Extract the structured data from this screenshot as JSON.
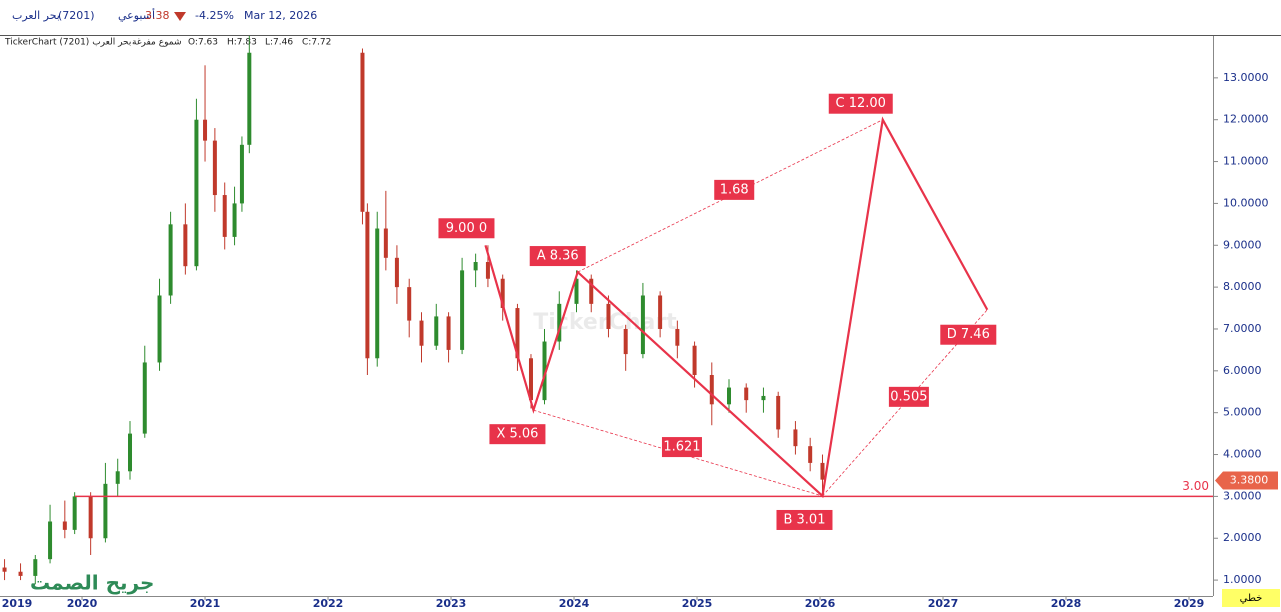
{
  "header": {
    "name": "بحر العرب",
    "code": "(7201)",
    "period": "أسبوعي",
    "price": "3.38",
    "change": "-4.25%",
    "date": "Mar 12, 2026",
    "chart_name": "TickerChart (7201) بحر العرب",
    "style": "شموع مفرغة",
    "ohlc": [
      "O:7.63",
      "H:7.83",
      "L:7.46",
      "C:7.72"
    ],
    "watermark": "TickerChart",
    "signature": "جريح الصمت",
    "scale_mode": "خطي"
  },
  "chart_data": {
    "type": "candlestick",
    "x": [
      2019.37,
      2019.5,
      2019.62,
      2019.74,
      2019.86,
      2019.94,
      2020.07,
      2020.19,
      2020.29,
      2020.39,
      2020.51,
      2020.63,
      2020.72,
      2020.84,
      2020.93,
      2021.0,
      2021.08,
      2021.16,
      2021.24,
      2021.3,
      2021.36,
      2022.28,
      2022.32,
      2022.4,
      2022.47,
      2022.56,
      2022.66,
      2022.76,
      2022.88,
      2022.98,
      2023.09,
      2023.2,
      2023.3,
      2023.42,
      2023.54,
      2023.65,
      2023.76,
      2023.88,
      2024.02,
      2024.14,
      2024.28,
      2024.42,
      2024.56,
      2024.7,
      2024.84,
      2024.98,
      2025.12,
      2025.26,
      2025.4,
      2025.54,
      2025.66,
      2025.8,
      2025.92,
      2026.02
    ],
    "open": [
      1.3,
      1.2,
      1.1,
      1.5,
      2.4,
      2.2,
      3.0,
      2.0,
      3.3,
      3.6,
      4.5,
      6.2,
      7.8,
      9.5,
      8.5,
      12.0,
      11.5,
      10.2,
      9.2,
      10.0,
      11.4,
      13.6,
      9.8,
      6.3,
      9.4,
      8.7,
      8.0,
      7.2,
      6.6,
      7.3,
      6.5,
      8.4,
      8.6,
      8.2,
      7.5,
      6.3,
      5.3,
      6.7,
      7.6,
      8.2,
      7.6,
      7.0,
      6.4,
      7.8,
      7.0,
      6.6,
      5.9,
      5.2,
      5.6,
      5.3,
      5.4,
      4.6,
      4.2,
      3.8
    ],
    "high": [
      1.5,
      1.4,
      1.6,
      2.8,
      2.9,
      3.1,
      3.1,
      3.8,
      3.9,
      4.8,
      6.6,
      8.2,
      9.8,
      10.0,
      12.5,
      13.3,
      11.8,
      10.5,
      10.4,
      11.6,
      14.0,
      13.7,
      10.0,
      9.8,
      10.3,
      9.0,
      8.2,
      7.4,
      7.6,
      7.4,
      8.7,
      8.8,
      9.0,
      8.3,
      7.6,
      6.4,
      7.0,
      7.9,
      8.4,
      8.3,
      7.8,
      7.1,
      8.1,
      7.9,
      7.2,
      6.7,
      6.2,
      5.8,
      5.7,
      5.6,
      5.5,
      4.8,
      4.4,
      4.0
    ],
    "low": [
      1.0,
      1.0,
      0.9,
      1.4,
      2.0,
      2.1,
      1.6,
      1.9,
      3.0,
      3.4,
      4.4,
      6.0,
      7.6,
      8.3,
      8.4,
      11.0,
      9.8,
      8.9,
      9.0,
      9.8,
      11.2,
      9.5,
      5.9,
      6.1,
      8.4,
      7.6,
      6.8,
      6.2,
      6.5,
      6.2,
      6.4,
      8.0,
      8.0,
      7.2,
      6.0,
      5.1,
      5.2,
      6.5,
      7.4,
      7.4,
      6.8,
      6.0,
      6.3,
      6.8,
      6.3,
      5.6,
      4.7,
      5.0,
      5.0,
      5.0,
      4.4,
      4.0,
      3.6,
      3.0
    ],
    "close": [
      1.2,
      1.1,
      1.5,
      2.4,
      2.2,
      3.0,
      2.0,
      3.3,
      3.6,
      4.5,
      6.2,
      7.8,
      9.5,
      8.5,
      12.0,
      11.5,
      10.2,
      9.2,
      10.0,
      11.4,
      13.6,
      9.8,
      6.3,
      9.4,
      8.7,
      8.0,
      7.2,
      6.6,
      7.3,
      6.5,
      8.4,
      8.6,
      8.2,
      7.5,
      6.3,
      5.3,
      6.7,
      7.6,
      8.2,
      7.6,
      7.0,
      6.4,
      7.8,
      7.0,
      6.6,
      5.9,
      5.2,
      5.6,
      5.3,
      5.4,
      4.6,
      4.2,
      3.8,
      3.4
    ],
    "up_color": "#2e8b2e",
    "down_color": "#c0392b",
    "xlim": [
      2019.333,
      2029.195
    ],
    "xticks": [
      2019,
      2020,
      2021,
      2022,
      2023,
      2024,
      2025,
      2026,
      2027,
      2028,
      2029
    ],
    "ylim": [
      0.62,
      14.0
    ],
    "yticks": [
      {
        "value": 1,
        "label": "1.0000"
      },
      {
        "value": 2,
        "label": "2.0000"
      },
      {
        "value": 3,
        "label": "3.0000"
      },
      {
        "value": 4,
        "label": "4.0000"
      },
      {
        "value": 5,
        "label": "5.0000"
      },
      {
        "value": 6,
        "label": "6.0000"
      },
      {
        "value": 7,
        "label": "7.0000"
      },
      {
        "value": 8,
        "label": "8.0000"
      },
      {
        "value": 9,
        "label": "9.0000"
      },
      {
        "value": 10,
        "label": "10.0000"
      },
      {
        "value": 11,
        "label": "11.0000"
      },
      {
        "value": 12,
        "label": "12.0000"
      },
      {
        "value": 13,
        "label": "13.0000"
      }
    ],
    "hline": {
      "value": 3,
      "label": "3.00",
      "color": "#e8334a"
    },
    "last_price": {
      "value": 3.38,
      "label": "3.3800",
      "color": "#e8644a"
    },
    "pattern": {
      "color": "#e8334a",
      "points": [
        {
          "label": "9.00 0",
          "x": 2023.28,
          "y": 9.0
        },
        {
          "label": "X 5.06",
          "x": 2023.67,
          "y": 5.06
        },
        {
          "label": "A 8.36",
          "x": 2024.03,
          "y": 8.36
        },
        {
          "label": "B 3.01",
          "x": 2026.02,
          "y": 3.01
        },
        {
          "label": "C 12.00",
          "x": 2026.51,
          "y": 12.0
        },
        {
          "label": "D 7.46",
          "x": 2027.36,
          "y": 7.46
        }
      ],
      "ratios": [
        1.68,
        1.621,
        0.505
      ]
    }
  }
}
